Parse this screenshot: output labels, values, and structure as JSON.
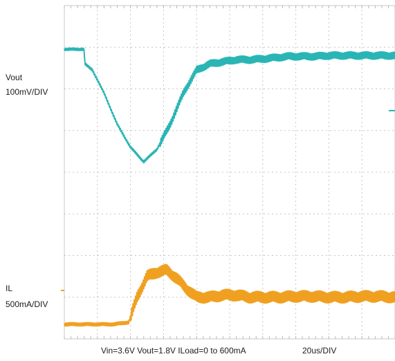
{
  "chart_data": {
    "type": "line",
    "title": "",
    "grid": true,
    "x_unit_per_div": "20us/DIV",
    "x_divisions": 10,
    "y_divisions": 8,
    "series": [
      {
        "name": "Vout",
        "scale": "100mV/DIV",
        "color": "#2ab5b5",
        "x_div": [
          0,
          0.6,
          0.62,
          0.85,
          1.2,
          1.6,
          2.0,
          2.4,
          2.8,
          3.2,
          3.6,
          4.0,
          4.4,
          4.8,
          5.2,
          5.6,
          6.0,
          6.4,
          6.8,
          7.2,
          7.6,
          8.0,
          8.4,
          8.8,
          9.2,
          9.6,
          10.0
        ],
        "y_div": [
          6.95,
          6.95,
          6.6,
          6.45,
          5.9,
          5.15,
          4.6,
          4.25,
          4.55,
          5.15,
          5.9,
          6.45,
          6.6,
          6.65,
          6.7,
          6.7,
          6.72,
          6.75,
          6.78,
          6.78,
          6.78,
          6.8,
          6.8,
          6.8,
          6.8,
          6.8,
          6.8
        ]
      },
      {
        "name": "IL",
        "scale": "500mA/DIV",
        "color": "#f0a020",
        "x_div": [
          0,
          1.5,
          1.95,
          2.2,
          2.5,
          2.8,
          3.1,
          3.4,
          3.7,
          4.0,
          4.4,
          4.8,
          5.2,
          5.6,
          6.0,
          6.5,
          7.0,
          7.5,
          8.0,
          8.5,
          9.0,
          9.5,
          10.0
        ],
        "y_div": [
          0.35,
          0.35,
          0.4,
          1.0,
          1.5,
          1.6,
          1.65,
          1.45,
          1.2,
          1.0,
          1.0,
          1.05,
          1.05,
          1.0,
          1.0,
          1.0,
          1.02,
          1.02,
          1.0,
          1.0,
          1.02,
          1.02,
          1.0
        ]
      }
    ]
  },
  "labels": {
    "vout_name": "Vout",
    "vout_scale": "100mV/DIV",
    "il_name": "IL",
    "il_scale": "500mA/DIV",
    "conditions": "Vin=3.6V Vout=1.8V ILoad=0 to 600mA",
    "timebase": "20us/DIV"
  }
}
